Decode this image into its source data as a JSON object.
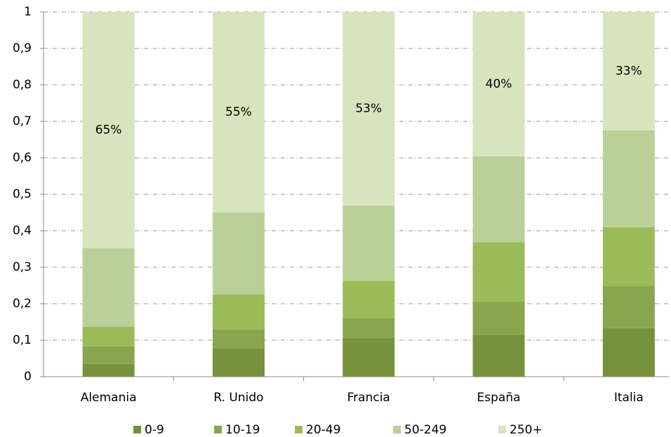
{
  "chart_data": {
    "type": "stacked-bar",
    "categories": [
      "Alemania",
      "R. Unido",
      "Francia",
      "España",
      "Italia"
    ],
    "series": [
      {
        "name": "0-9",
        "color": "#76923c",
        "values": [
          0.035,
          0.077,
          0.106,
          0.115,
          0.133
        ]
      },
      {
        "name": "10-19",
        "color": "#89a54e",
        "values": [
          0.048,
          0.052,
          0.054,
          0.091,
          0.115
        ]
      },
      {
        "name": "20-49",
        "color": "#9bbb59",
        "values": [
          0.054,
          0.096,
          0.103,
          0.163,
          0.162
        ]
      },
      {
        "name": "50-249",
        "color": "#bbd098",
        "values": [
          0.215,
          0.225,
          0.206,
          0.235,
          0.265
        ]
      },
      {
        "name": "250+",
        "color": "#d7e4bd",
        "values": [
          0.648,
          0.55,
          0.531,
          0.396,
          0.325
        ],
        "value_labels": [
          "65%",
          "55%",
          "53%",
          "40%",
          "33%"
        ]
      }
    ],
    "ylim": [
      0,
      1
    ],
    "yticks": [
      0,
      {
        "value": 0.1,
        "label": "0,1"
      },
      {
        "value": 0.2,
        "label": "0,2"
      },
      {
        "value": 0.3,
        "label": "0,3"
      },
      {
        "value": 0.4,
        "label": "0,4"
      },
      {
        "value": 0.5,
        "label": "0,5"
      },
      {
        "value": 0.6,
        "label": "0,6"
      },
      {
        "value": 0.7,
        "label": "0,7"
      },
      {
        "value": 0.8,
        "label": "0,8"
      },
      {
        "value": 0.9,
        "label": "0,9"
      },
      1
    ],
    "grid": true,
    "legend": "bottom"
  }
}
